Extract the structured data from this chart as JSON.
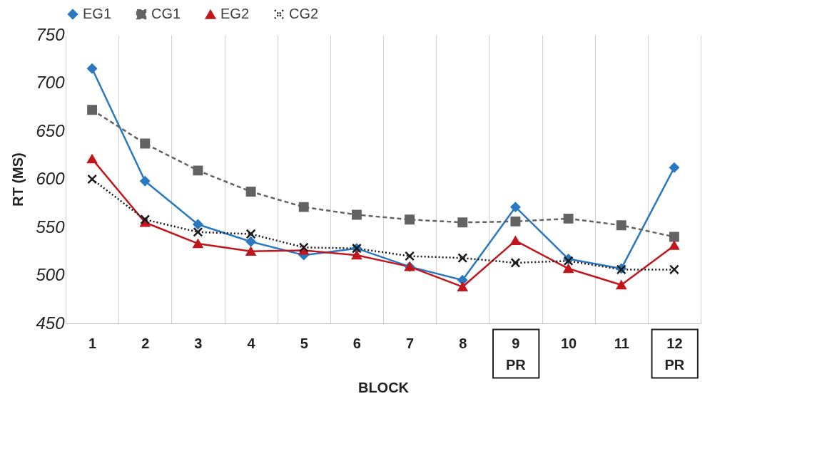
{
  "chart_data": {
    "type": "line",
    "xlabel": "BLOCK",
    "ylabel": "RT (MS)",
    "categories": [
      "1",
      "2",
      "3",
      "4",
      "5",
      "6",
      "7",
      "8",
      "9\nPR",
      "10",
      "11",
      "12\nPR"
    ],
    "series": [
      {
        "name": "EG1",
        "color": "#2a78c0",
        "marker": "diamond",
        "line_style": "solid",
        "values": [
          715,
          598,
          553,
          535,
          521,
          528,
          509,
          495,
          571,
          517,
          507,
          612
        ]
      },
      {
        "name": "CG1",
        "color": "#636363",
        "marker": "square",
        "line_style": "dashed",
        "values": [
          672,
          637,
          609,
          587,
          571,
          563,
          558,
          555,
          556,
          559,
          552,
          540
        ]
      },
      {
        "name": "EG2",
        "color": "#c0161c",
        "marker": "triangle",
        "line_style": "solid",
        "values": [
          621,
          555,
          533,
          525,
          526,
          521,
          509,
          488,
          536,
          507,
          490,
          531
        ]
      },
      {
        "name": "CG2",
        "color": "#1a1a1a",
        "marker": "cross",
        "line_style": "dotted",
        "values": [
          600,
          558,
          545,
          543,
          529,
          528,
          520,
          518,
          513,
          515,
          506,
          506
        ]
      }
    ],
    "ylim": [
      450,
      750
    ],
    "yticks": [
      450,
      500,
      550,
      600,
      650,
      700,
      750
    ],
    "grid": "x",
    "legend": "top"
  }
}
